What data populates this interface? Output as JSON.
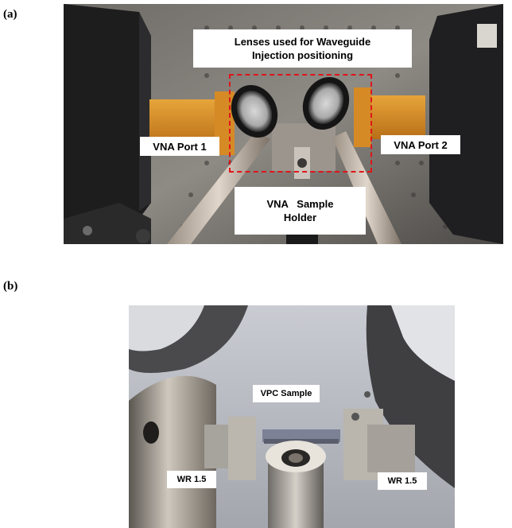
{
  "panel_a": {
    "letter": "(a)",
    "labels": {
      "lenses_line1": "Lenses used for Waveguide",
      "lenses_line2": "Injection positioning",
      "port1": "VNA Port 1",
      "port2": "VNA Port 2",
      "holder_line1": "VNA   Sample",
      "holder_line2": "Holder"
    },
    "highlight_color": "#e0141a"
  },
  "panel_b": {
    "letter": "(b)",
    "labels": {
      "sample": "VPC Sample",
      "wr_left": "WR 1.5",
      "wr_right": "WR 1.5"
    }
  }
}
